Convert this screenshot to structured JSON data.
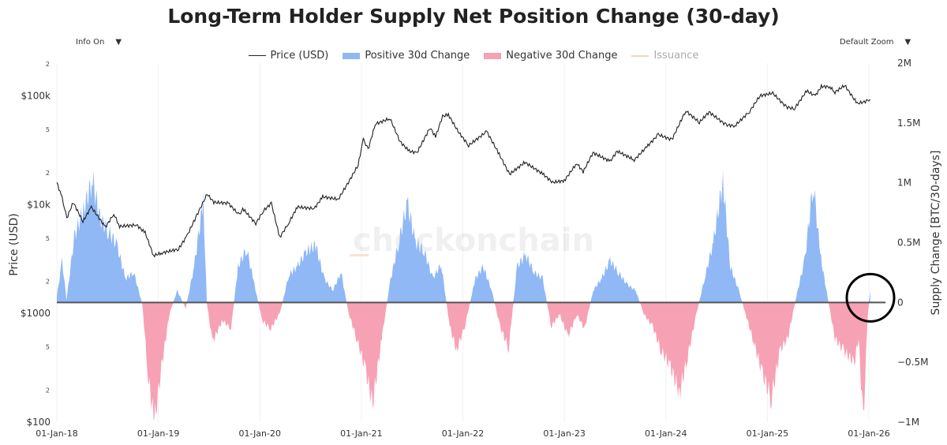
{
  "title": "Long-Term Holder Supply Net Position Change (30-day)",
  "controls": {
    "info_label": "Info On",
    "zoom_label": "Default Zoom",
    "dropdown_glyph": "▼"
  },
  "watermark": "checkonchain",
  "chart_data": {
    "type": "area",
    "title": "Long-Term Holder Supply Net Position Change (30-day)",
    "legend_position": "top-center",
    "legend": [
      {
        "name": "Price (USD)",
        "color": "#222222"
      },
      {
        "name": "Positive 30d Change",
        "color": "#8fb8f5"
      },
      {
        "name": "Negative 30d Change",
        "color": "#f7a1b4"
      },
      {
        "name": "Issuance",
        "color": "#f5c89a",
        "hidden": true
      }
    ],
    "x_ticks": [
      "01-Jan-18",
      "01-Jan-19",
      "01-Jan-20",
      "01-Jan-21",
      "01-Jan-22",
      "01-Jan-23",
      "01-Jan-24",
      "01-Jan-25",
      "01-Jan-26"
    ],
    "xlim": [
      "2018-01-01",
      "2026-02-15"
    ],
    "left_axis": {
      "label": "Price (USD)",
      "scale": "log",
      "range": [
        100,
        200000
      ],
      "ticks": [
        {
          "v": 200000,
          "t": "2"
        },
        {
          "v": 100000,
          "t": "$100k"
        },
        {
          "v": 50000,
          "t": "5"
        },
        {
          "v": 20000,
          "t": "2"
        },
        {
          "v": 10000,
          "t": "$10k"
        },
        {
          "v": 5000,
          "t": "5"
        },
        {
          "v": 2000,
          "t": "2"
        },
        {
          "v": 1000,
          "t": "$1000"
        },
        {
          "v": 500,
          "t": "5"
        },
        {
          "v": 200,
          "t": "2"
        },
        {
          "v": 100,
          "t": "$100"
        }
      ]
    },
    "right_axis": {
      "label": "Supply Change [BTC/30-days]",
      "scale": "linear",
      "range": [
        -1000000,
        2000000
      ],
      "ticks": [
        {
          "v": 2000000,
          "t": "2M"
        },
        {
          "v": 1500000,
          "t": "1.5M"
        },
        {
          "v": 1000000,
          "t": "1M"
        },
        {
          "v": 500000,
          "t": "0.5M"
        },
        {
          "v": 0,
          "t": "0"
        },
        {
          "v": -500000,
          "t": "−0.5M"
        },
        {
          "v": -1000000,
          "t": "−1M"
        }
      ]
    },
    "price": [
      [
        "2018-01-01",
        16000
      ],
      [
        "2018-01-20",
        11500
      ],
      [
        "2018-02-06",
        7500
      ],
      [
        "2018-03-01",
        10500
      ],
      [
        "2018-04-05",
        7000
      ],
      [
        "2018-05-05",
        9500
      ],
      [
        "2018-06-25",
        6200
      ],
      [
        "2018-07-25",
        8200
      ],
      [
        "2018-08-15",
        6300
      ],
      [
        "2018-10-15",
        6500
      ],
      [
        "2018-11-15",
        5500
      ],
      [
        "2018-12-15",
        3400
      ],
      [
        "2019-01-15",
        3600
      ],
      [
        "2019-03-15",
        3900
      ],
      [
        "2019-04-15",
        5200
      ],
      [
        "2019-05-20",
        8000
      ],
      [
        "2019-06-26",
        12500
      ],
      [
        "2019-07-20",
        10500
      ],
      [
        "2019-09-10",
        10300
      ],
      [
        "2019-10-20",
        8000
      ],
      [
        "2019-11-01",
        9200
      ],
      [
        "2019-12-18",
        6700
      ],
      [
        "2020-01-15",
        8800
      ],
      [
        "2020-02-12",
        10300
      ],
      [
        "2020-03-13",
        5000
      ],
      [
        "2020-04-15",
        6800
      ],
      [
        "2020-05-15",
        9500
      ],
      [
        "2020-07-15",
        9200
      ],
      [
        "2020-08-15",
        11800
      ],
      [
        "2020-10-10",
        11200
      ],
      [
        "2020-11-15",
        16000
      ],
      [
        "2020-12-20",
        23000
      ],
      [
        "2021-01-08",
        40000
      ],
      [
        "2021-01-25",
        32000
      ],
      [
        "2021-02-20",
        55000
      ],
      [
        "2021-04-14",
        62000
      ],
      [
        "2021-05-20",
        38000
      ],
      [
        "2021-06-22",
        31000
      ],
      [
        "2021-07-20",
        30000
      ],
      [
        "2021-09-05",
        51000
      ],
      [
        "2021-09-25",
        42000
      ],
      [
        "2021-10-20",
        65000
      ],
      [
        "2021-11-10",
        67000
      ],
      [
        "2021-12-15",
        47000
      ],
      [
        "2022-01-22",
        35000
      ],
      [
        "2022-03-28",
        47000
      ],
      [
        "2022-05-12",
        29000
      ],
      [
        "2022-06-18",
        19000
      ],
      [
        "2022-08-12",
        24500
      ],
      [
        "2022-10-15",
        19200
      ],
      [
        "2022-11-20",
        16000
      ],
      [
        "2023-01-01",
        16600
      ],
      [
        "2023-02-15",
        24000
      ],
      [
        "2023-03-10",
        20000
      ],
      [
        "2023-04-14",
        30000
      ],
      [
        "2023-06-15",
        25000
      ],
      [
        "2023-07-10",
        31000
      ],
      [
        "2023-09-10",
        25800
      ],
      [
        "2023-10-25",
        34000
      ],
      [
        "2023-12-05",
        44000
      ],
      [
        "2024-01-23",
        39500
      ],
      [
        "2024-03-13",
        73000
      ],
      [
        "2024-05-01",
        57000
      ],
      [
        "2024-06-05",
        71000
      ],
      [
        "2024-08-05",
        54000
      ],
      [
        "2024-09-06",
        53000
      ],
      [
        "2024-10-29",
        72000
      ],
      [
        "2024-12-05",
        100000
      ],
      [
        "2025-01-20",
        106000
      ],
      [
        "2025-03-10",
        79000
      ],
      [
        "2025-04-08",
        76000
      ],
      [
        "2025-05-22",
        111000
      ],
      [
        "2025-06-22",
        100000
      ],
      [
        "2025-07-14",
        122000
      ],
      [
        "2025-08-14",
        121000
      ],
      [
        "2025-09-01",
        108000
      ],
      [
        "2025-10-06",
        125000
      ],
      [
        "2025-11-20",
        85000
      ],
      [
        "2025-12-15",
        88000
      ],
      [
        "2026-01-05",
        93000
      ]
    ],
    "supply_change": [
      [
        "2018-01-01",
        50000
      ],
      [
        "2018-01-20",
        350000
      ],
      [
        "2018-02-05",
        20000
      ],
      [
        "2018-03-05",
        550000
      ],
      [
        "2018-04-10",
        800000
      ],
      [
        "2018-05-10",
        1020000
      ],
      [
        "2018-06-05",
        700000
      ],
      [
        "2018-07-05",
        600000
      ],
      [
        "2018-08-05",
        480000
      ],
      [
        "2018-09-05",
        200000
      ],
      [
        "2018-10-05",
        250000
      ],
      [
        "2018-11-05",
        -20000
      ],
      [
        "2018-11-25",
        -600000
      ],
      [
        "2018-12-18",
        -1000000
      ],
      [
        "2019-01-15",
        -500000
      ],
      [
        "2019-02-10",
        -100000
      ],
      [
        "2019-03-10",
        100000
      ],
      [
        "2019-04-10",
        -50000
      ],
      [
        "2019-05-10",
        300000
      ],
      [
        "2019-06-12",
        850000
      ],
      [
        "2019-06-25",
        -10000
      ],
      [
        "2019-07-15",
        -330000
      ],
      [
        "2019-08-20",
        -150000
      ],
      [
        "2019-09-20",
        -220000
      ],
      [
        "2019-10-15",
        300000
      ],
      [
        "2019-11-15",
        450000
      ],
      [
        "2019-12-10",
        180000
      ],
      [
        "2020-01-10",
        -150000
      ],
      [
        "2020-02-10",
        -220000
      ],
      [
        "2020-03-15",
        -80000
      ],
      [
        "2020-04-15",
        230000
      ],
      [
        "2020-05-15",
        300000
      ],
      [
        "2020-06-15",
        420000
      ],
      [
        "2020-07-20",
        480000
      ],
      [
        "2020-08-20",
        200000
      ],
      [
        "2020-09-20",
        100000
      ],
      [
        "2020-10-20",
        250000
      ],
      [
        "2020-11-15",
        -80000
      ],
      [
        "2020-12-15",
        -300000
      ],
      [
        "2021-01-15",
        -550000
      ],
      [
        "2021-02-10",
        -850000
      ],
      [
        "2021-03-15",
        -300000
      ],
      [
        "2021-04-15",
        180000
      ],
      [
        "2021-05-15",
        500000
      ],
      [
        "2021-06-15",
        830000
      ],
      [
        "2021-07-15",
        500000
      ],
      [
        "2021-08-15",
        430000
      ],
      [
        "2021-09-15",
        200000
      ],
      [
        "2021-10-15",
        320000
      ],
      [
        "2021-11-15",
        -200000
      ],
      [
        "2021-12-10",
        -400000
      ],
      [
        "2022-01-10",
        -180000
      ],
      [
        "2022-02-15",
        200000
      ],
      [
        "2022-03-15",
        300000
      ],
      [
        "2022-04-15",
        100000
      ],
      [
        "2022-05-15",
        -200000
      ],
      [
        "2022-06-15",
        -380000
      ],
      [
        "2022-07-15",
        300000
      ],
      [
        "2022-08-15",
        400000
      ],
      [
        "2022-09-15",
        250000
      ],
      [
        "2022-10-15",
        200000
      ],
      [
        "2022-11-15",
        -200000
      ],
      [
        "2022-12-15",
        -100000
      ],
      [
        "2023-01-15",
        -280000
      ],
      [
        "2023-02-15",
        -100000
      ],
      [
        "2023-03-15",
        -220000
      ],
      [
        "2023-04-15",
        100000
      ],
      [
        "2023-05-15",
        200000
      ],
      [
        "2023-06-15",
        350000
      ],
      [
        "2023-07-15",
        250000
      ],
      [
        "2023-08-15",
        150000
      ],
      [
        "2023-09-15",
        100000
      ],
      [
        "2023-10-15",
        -100000
      ],
      [
        "2023-11-15",
        -200000
      ],
      [
        "2023-12-15",
        -400000
      ],
      [
        "2024-01-15",
        -520000
      ],
      [
        "2024-02-20",
        -750000
      ],
      [
        "2024-03-20",
        -450000
      ],
      [
        "2024-04-20",
        -100000
      ],
      [
        "2024-05-20",
        200000
      ],
      [
        "2024-06-20",
        500000
      ],
      [
        "2024-07-25",
        1020000
      ],
      [
        "2024-08-20",
        300000
      ],
      [
        "2024-09-20",
        100000
      ],
      [
        "2024-10-15",
        -100000
      ],
      [
        "2024-11-15",
        -350000
      ],
      [
        "2024-12-15",
        -600000
      ],
      [
        "2025-01-15",
        -800000
      ],
      [
        "2025-02-15",
        -400000
      ],
      [
        "2025-03-15",
        -300000
      ],
      [
        "2025-04-15",
        50000
      ],
      [
        "2025-05-15",
        350000
      ],
      [
        "2025-06-15",
        1000000
      ],
      [
        "2025-07-10",
        400000
      ],
      [
        "2025-08-05",
        50000
      ],
      [
        "2025-09-01",
        -300000
      ],
      [
        "2025-10-01",
        -400000
      ],
      [
        "2025-11-10",
        -500000
      ],
      [
        "2025-11-25",
        -300000
      ],
      [
        "2025-12-12",
        -1000000
      ],
      [
        "2025-12-28",
        -100000
      ],
      [
        "2026-01-06",
        100000
      ]
    ],
    "annotations": [
      {
        "type": "circle",
        "around_date": "2026-01-01",
        "around_value": 0
      }
    ]
  }
}
